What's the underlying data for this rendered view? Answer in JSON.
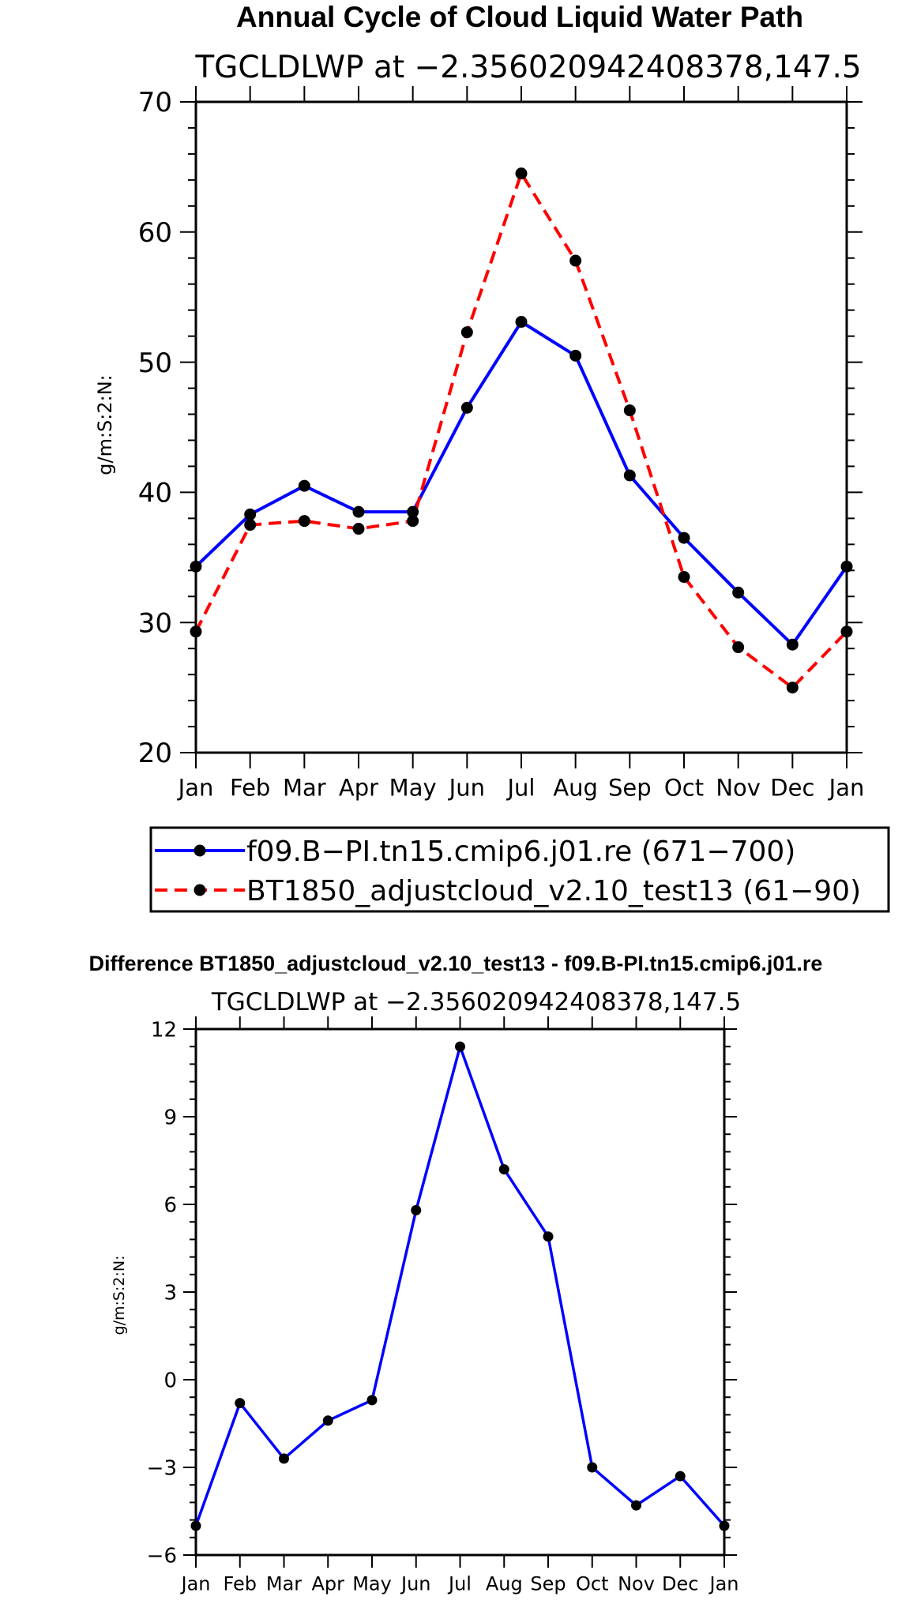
{
  "chart_data": [
    {
      "type": "line",
      "title": "Annual Cycle of Cloud Liquid Water Path",
      "subtitle": "TGCLDLWP at −2.356020942408378,147.5",
      "xlabel": "",
      "ylabel": "g/m:S:2:N:",
      "categories": [
        "Jan",
        "Feb",
        "Mar",
        "Apr",
        "May",
        "Jun",
        "Jul",
        "Aug",
        "Sep",
        "Oct",
        "Nov",
        "Dec",
        "Jan"
      ],
      "ylim": [
        20,
        70
      ],
      "yticks": [
        20,
        30,
        40,
        50,
        60,
        70
      ],
      "ytick_labels": [
        "20",
        "30",
        "40",
        "50",
        "60",
        "70"
      ],
      "legend_position": "below",
      "series": [
        {
          "name": "f09.B−PI.tn15.cmip6.j01.re (671−700)",
          "color": "#0000ff",
          "dash": "solid",
          "values": [
            34.3,
            38.3,
            40.5,
            38.5,
            38.5,
            46.5,
            53.1,
            50.5,
            41.3,
            36.5,
            32.3,
            28.3,
            34.3
          ]
        },
        {
          "name": "BT1850_adjustcloud_v2.10_test13 (61−90)",
          "color": "#ff0000",
          "dash": "dashed",
          "values": [
            29.3,
            37.5,
            37.8,
            37.2,
            37.8,
            52.3,
            64.5,
            57.8,
            46.3,
            33.5,
            28.1,
            25.0,
            29.3
          ]
        }
      ]
    },
    {
      "type": "line",
      "title": "Difference BT1850_adjustcloud_v2.10_test13 - f09.B-PI.tn15.cmip6.j01.re",
      "subtitle": "TGCLDLWP at −2.356020942408378,147.5",
      "xlabel": "",
      "ylabel": "g/m:S:2:N:",
      "categories": [
        "Jan",
        "Feb",
        "Mar",
        "Apr",
        "May",
        "Jun",
        "Jul",
        "Aug",
        "Sep",
        "Oct",
        "Nov",
        "Dec",
        "Jan"
      ],
      "ylim": [
        -6,
        12
      ],
      "yticks": [
        -6,
        -3,
        0,
        3,
        6,
        9,
        12
      ],
      "ytick_labels": [
        "−6",
        "−3",
        "0",
        "3",
        "6",
        "9",
        "12"
      ],
      "series": [
        {
          "name": "Difference",
          "color": "#0000ff",
          "dash": "solid",
          "values": [
            -5.0,
            -0.8,
            -2.7,
            -1.4,
            -0.7,
            5.8,
            11.4,
            7.2,
            4.9,
            -3.0,
            -4.3,
            -3.3,
            -5.0
          ]
        }
      ]
    }
  ]
}
